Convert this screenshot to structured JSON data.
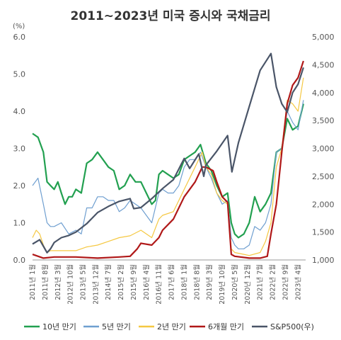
{
  "chart_data": {
    "type": "line",
    "title": "2011~2023년 미국 증시와 국채금리",
    "y_left_unit": "(%)",
    "y_left_range": [
      0,
      6
    ],
    "y_left_ticks": [
      "0.0",
      "1.0",
      "2.0",
      "3.0",
      "4.0",
      "5.0",
      "6.0"
    ],
    "y_right_range": [
      1000,
      5000
    ],
    "y_right_ticks": [
      "1,000",
      "1,500",
      "2,000",
      "2,500",
      "3,000",
      "3,500",
      "4,000",
      "4,500",
      "5,000"
    ],
    "x_range": [
      2011.0,
      2023.6
    ],
    "x_tick_labels": [
      "2011년 1월",
      "2011년 8월",
      "2012년 3월",
      "2012년 10월",
      "2013년 5월",
      "2013년 12월",
      "2014년 7월",
      "2015년 2월",
      "2015년 9월",
      "2016년 4월",
      "2016년 11월",
      "2017년 6월",
      "2018년 1월",
      "2018년 8월",
      "2019년 3월",
      "2019년 10월",
      "2020년 5월",
      "2020년 12월",
      "2021년 7월",
      "2022년 2월",
      "2022년 9월",
      "2023년 4월"
    ],
    "x_tick_values": [
      2011.0,
      2011.583,
      2012.167,
      2012.75,
      2013.333,
      2013.917,
      2014.5,
      2015.083,
      2015.667,
      2016.25,
      2016.833,
      2017.417,
      2018.0,
      2018.583,
      2019.167,
      2019.75,
      2020.333,
      2020.917,
      2021.5,
      2022.083,
      2022.667,
      2023.25
    ],
    "series": [
      {
        "name": "10년 만기",
        "axis": "left",
        "color": "#22a050",
        "x": [
          2011.0,
          2011.25,
          2011.5,
          2011.67,
          2011.83,
          2012.0,
          2012.17,
          2012.33,
          2012.5,
          2012.67,
          2012.83,
          2013.0,
          2013.25,
          2013.5,
          2013.75,
          2014.0,
          2014.25,
          2014.5,
          2014.75,
          2015.0,
          2015.25,
          2015.5,
          2015.75,
          2016.0,
          2016.25,
          2016.5,
          2016.67,
          2016.83,
          2017.0,
          2017.25,
          2017.5,
          2017.75,
          2018.0,
          2018.25,
          2018.5,
          2018.75,
          2019.0,
          2019.25,
          2019.5,
          2019.75,
          2020.0,
          2020.17,
          2020.33,
          2020.5,
          2020.75,
          2021.0,
          2021.25,
          2021.5,
          2021.75,
          2022.0,
          2022.25,
          2022.5,
          2022.75,
          2023.0,
          2023.25,
          2023.5
        ],
        "y": [
          3.4,
          3.3,
          2.9,
          2.1,
          2.0,
          1.9,
          2.1,
          1.8,
          1.5,
          1.7,
          1.7,
          1.9,
          1.8,
          2.6,
          2.7,
          2.9,
          2.7,
          2.5,
          2.4,
          1.9,
          2.0,
          2.3,
          2.1,
          2.1,
          1.8,
          1.5,
          1.6,
          2.3,
          2.4,
          2.3,
          2.2,
          2.3,
          2.7,
          2.8,
          2.9,
          3.1,
          2.6,
          2.4,
          2.0,
          1.7,
          1.8,
          1.0,
          0.7,
          0.6,
          0.7,
          1.0,
          1.7,
          1.3,
          1.5,
          1.8,
          2.9,
          3.0,
          3.8,
          3.5,
          3.6,
          4.2
        ]
      },
      {
        "name": "5년 만기",
        "axis": "left",
        "color": "#6f9fd0",
        "x": [
          2011.0,
          2011.25,
          2011.5,
          2011.67,
          2011.83,
          2012.0,
          2012.33,
          2012.67,
          2013.0,
          2013.25,
          2013.5,
          2013.75,
          2014.0,
          2014.25,
          2014.5,
          2014.75,
          2015.0,
          2015.25,
          2015.5,
          2015.75,
          2016.0,
          2016.25,
          2016.5,
          2016.83,
          2017.0,
          2017.25,
          2017.5,
          2017.75,
          2018.0,
          2018.25,
          2018.5,
          2018.75,
          2019.0,
          2019.25,
          2019.5,
          2019.75,
          2020.0,
          2020.17,
          2020.33,
          2020.5,
          2020.75,
          2021.0,
          2021.25,
          2021.5,
          2021.75,
          2022.0,
          2022.25,
          2022.5,
          2022.75,
          2023.0,
          2023.25,
          2023.5
        ],
        "y": [
          2.0,
          2.2,
          1.5,
          1.0,
          0.9,
          0.9,
          1.0,
          0.7,
          0.8,
          0.7,
          1.4,
          1.4,
          1.7,
          1.7,
          1.6,
          1.6,
          1.3,
          1.4,
          1.6,
          1.5,
          1.4,
          1.2,
          1.0,
          1.8,
          1.9,
          1.8,
          1.8,
          2.0,
          2.5,
          2.7,
          2.7,
          2.9,
          2.5,
          2.2,
          1.8,
          1.5,
          1.6,
          0.6,
          0.4,
          0.3,
          0.3,
          0.4,
          0.9,
          0.8,
          1.0,
          1.5,
          2.9,
          3.0,
          4.0,
          3.7,
          3.5,
          4.3
        ]
      },
      {
        "name": "2년 만기",
        "axis": "left",
        "color": "#f5c842",
        "x": [
          2011.0,
          2011.17,
          2011.33,
          2011.5,
          2011.67,
          2011.83,
          2012.0,
          2012.5,
          2013.0,
          2013.5,
          2014.0,
          2014.5,
          2015.0,
          2015.5,
          2016.0,
          2016.5,
          2016.83,
          2017.0,
          2017.5,
          2018.0,
          2018.5,
          2018.83,
          2019.0,
          2019.25,
          2019.5,
          2019.75,
          2020.0,
          2020.17,
          2020.33,
          2020.75,
          2021.0,
          2021.5,
          2021.75,
          2022.0,
          2022.25,
          2022.5,
          2022.75,
          2023.0,
          2023.25,
          2023.5
        ],
        "y": [
          0.6,
          0.8,
          0.7,
          0.4,
          0.2,
          0.25,
          0.25,
          0.25,
          0.25,
          0.35,
          0.4,
          0.5,
          0.6,
          0.65,
          0.8,
          0.6,
          1.1,
          1.2,
          1.3,
          1.9,
          2.5,
          2.9,
          2.5,
          2.3,
          1.8,
          1.6,
          1.5,
          0.3,
          0.2,
          0.15,
          0.12,
          0.2,
          0.5,
          1.0,
          2.5,
          3.0,
          4.3,
          4.2,
          4.0,
          4.9
        ]
      },
      {
        "name": "6개월 만기",
        "axis": "left",
        "color": "#b01818",
        "x": [
          2011.0,
          2011.5,
          2012.0,
          2013.0,
          2014.0,
          2015.0,
          2015.5,
          2015.83,
          2016.0,
          2016.5,
          2016.83,
          2017.0,
          2017.5,
          2018.0,
          2018.5,
          2018.83,
          2019.0,
          2019.33,
          2019.5,
          2019.75,
          2020.0,
          2020.17,
          2020.33,
          2021.0,
          2021.5,
          2021.83,
          2022.0,
          2022.25,
          2022.5,
          2022.75,
          2023.0,
          2023.25,
          2023.5
        ],
        "y": [
          0.15,
          0.05,
          0.08,
          0.08,
          0.05,
          0.08,
          0.1,
          0.3,
          0.45,
          0.4,
          0.6,
          0.8,
          1.1,
          1.7,
          2.1,
          2.5,
          2.5,
          2.4,
          2.1,
          1.7,
          1.55,
          0.15,
          0.1,
          0.05,
          0.05,
          0.1,
          0.7,
          1.5,
          2.9,
          4.2,
          4.7,
          4.9,
          5.35
        ]
      },
      {
        "name": "S&P500(우)",
        "axis": "right",
        "color": "#4a5568",
        "x": [
          2011.0,
          2011.33,
          2011.67,
          2011.83,
          2012.0,
          2012.33,
          2012.67,
          2013.0,
          2013.5,
          2014.0,
          2014.5,
          2015.0,
          2015.5,
          2015.67,
          2016.0,
          2016.5,
          2017.0,
          2017.5,
          2018.0,
          2018.25,
          2018.67,
          2018.9,
          2019.0,
          2019.5,
          2020.0,
          2020.2,
          2020.5,
          2021.0,
          2021.5,
          2022.0,
          2022.25,
          2022.5,
          2022.75,
          2023.0,
          2023.25,
          2023.5
        ],
        "y": [
          1286,
          1363,
          1131,
          1200,
          1312,
          1400,
          1440,
          1500,
          1650,
          1850,
          1960,
          2050,
          2100,
          1920,
          1940,
          2100,
          2280,
          2440,
          2820,
          2640,
          2900,
          2500,
          2700,
          2950,
          3230,
          2580,
          3100,
          3750,
          4400,
          4700,
          4100,
          3800,
          3650,
          4000,
          4150,
          4450
        ]
      }
    ]
  }
}
